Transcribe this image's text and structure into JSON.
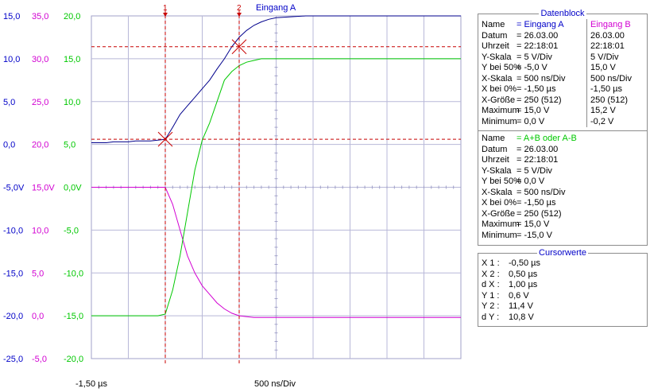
{
  "chart_data": {
    "type": "line",
    "x_start_label": "-1,50 µs",
    "x_div_label": "500 ns/Div",
    "cursor_labels": [
      "1",
      "2"
    ],
    "trace_title": "Eingang A",
    "axes_left": {
      "blue": [
        "15,0",
        "10,0",
        "5,0",
        "0,0",
        "-5,0V",
        "-10,0",
        "-15,0",
        "-20,0",
        "-25,0"
      ],
      "magenta": [
        "35,0",
        "30,0",
        "25,0",
        "20,0",
        "15,0V",
        "10,0",
        "5,0",
        "0,0",
        "-5,0"
      ],
      "green": [
        "20,0",
        "15,0",
        "10,0",
        "5,0",
        "0,0V",
        "-5,0",
        "-10,0",
        "-15,0",
        "-20,0"
      ]
    },
    "x": [
      -1.5,
      -1.4,
      -1.3,
      -1.2,
      -1.1,
      -1.0,
      -0.9,
      -0.8,
      -0.7,
      -0.6,
      -0.5,
      -0.4,
      -0.3,
      -0.2,
      -0.1,
      0.0,
      0.1,
      0.2,
      0.3,
      0.4,
      0.5,
      0.6,
      0.7,
      0.8,
      0.9,
      1.0,
      1.2,
      1.4,
      1.6,
      1.8,
      2.0,
      2.2,
      2.4,
      2.6,
      2.8,
      3.0,
      3.2,
      3.4,
      3.5
    ],
    "series": [
      {
        "name": "Eingang A",
        "color": "#00008c",
        "ylim": [
          -25,
          15
        ],
        "values": [
          0.2,
          0.2,
          0.2,
          0.3,
          0.3,
          0.3,
          0.4,
          0.4,
          0.4,
          0.5,
          0.6,
          2.0,
          3.5,
          4.5,
          5.5,
          6.5,
          7.5,
          8.8,
          10.0,
          11.4,
          12.5,
          13.3,
          13.9,
          14.3,
          14.6,
          14.8,
          14.9,
          15.0,
          15.0,
          15.0,
          15.0,
          15.0,
          15.0,
          15.0,
          15.0,
          15.0,
          15.0,
          15.0,
          15.0
        ]
      },
      {
        "name": "Eingang B",
        "color": "#d200d2",
        "ylim": [
          -5,
          35
        ],
        "values": [
          15.0,
          15.0,
          15.0,
          15.0,
          15.0,
          15.0,
          15.0,
          15.0,
          15.0,
          15.0,
          15.0,
          13.0,
          10.0,
          7.0,
          5.0,
          3.5,
          2.5,
          1.5,
          0.8,
          0.3,
          0.0,
          -0.1,
          -0.2,
          -0.2,
          -0.2,
          -0.2,
          -0.2,
          -0.2,
          -0.2,
          -0.2,
          -0.2,
          -0.2,
          -0.2,
          -0.2,
          -0.2,
          -0.2,
          -0.2,
          -0.2,
          -0.2
        ]
      },
      {
        "name": "A+B oder A-B",
        "color": "#00c800",
        "ylim": [
          -20,
          20
        ],
        "values": [
          -15.0,
          -15.0,
          -15.0,
          -15.0,
          -15.0,
          -15.0,
          -15.0,
          -15.0,
          -15.0,
          -15.0,
          -14.8,
          -12.0,
          -8.0,
          -3.0,
          2.0,
          5.5,
          7.5,
          10.0,
          12.5,
          13.5,
          14.2,
          14.6,
          14.8,
          15.0,
          15.0,
          15.0,
          15.0,
          15.0,
          15.0,
          15.0,
          15.0,
          15.0,
          15.0,
          15.0,
          15.0,
          15.0,
          15.0,
          15.0,
          15.0
        ]
      }
    ],
    "cursors": {
      "x1": -0.5,
      "x2": 0.5,
      "y1": 0.6,
      "y2": 11.4
    },
    "xlim": [
      -1.5,
      3.5
    ],
    "grid": true
  },
  "datenblock": {
    "title": "Datenblock",
    "rows": [
      {
        "label": "Name",
        "a": "= Eingang A",
        "b": "Eingang B"
      },
      {
        "label": "Datum",
        "a": "= 26.03.00",
        "b": "26.03.00"
      },
      {
        "label": "Uhrzeit",
        "a": "= 22:18:01",
        "b": "22:18:01"
      },
      {
        "label": "Y-Skala",
        "a": "=     5    V/Div",
        "b": "  5    V/Div"
      },
      {
        "label": "Y bei 50%",
        "a": "=   -5,0   V",
        "b": "15,0   V"
      },
      {
        "label": "X-Skala",
        "a": "= 500     ns/Div",
        "b": "500    ns/Div"
      },
      {
        "label": "X bei 0%",
        "a": "=   -1,50 µs",
        "b": "  -1,50 µs"
      },
      {
        "label": "X-Größe",
        "a": "= 250 (512)",
        "b": "250 (512)"
      },
      {
        "label": "Maximum",
        "a": "=   15,0   V",
        "b": "  15,2   V"
      },
      {
        "label": "Minimum",
        "a": "=     0,0   V",
        "b": "  -0,2   V"
      }
    ],
    "rows2": [
      {
        "label": "Name",
        "a": "= A+B oder A-B"
      },
      {
        "label": "Datum",
        "a": "= 26.03.00"
      },
      {
        "label": "Uhrzeit",
        "a": "= 22:18:01"
      },
      {
        "label": "Y-Skala",
        "a": "=     5    V/Div"
      },
      {
        "label": "Y bei 50%",
        "a": "=     0,0   V"
      },
      {
        "label": "X-Skala",
        "a": "= 500     ns/Div"
      },
      {
        "label": "X bei 0%",
        "a": "=   -1,50 µs"
      },
      {
        "label": "X-Größe",
        "a": "= 250 (512)"
      },
      {
        "label": "Maximum",
        "a": "=   15,0   V"
      },
      {
        "label": "Minimum",
        "a": "= -15,0   V"
      }
    ]
  },
  "cursorwerte": {
    "title": "Cursorwerte",
    "rows": [
      {
        "label": "X 1 :",
        "value": "-0,50 µs"
      },
      {
        "label": "X 2 :",
        "value": "  0,50 µs"
      },
      {
        "label": "d X :",
        "value": "  1,00 µs"
      },
      {
        "label": "Y 1 :",
        "value": "     0,6   V"
      },
      {
        "label": "Y 2 :",
        "value": "   11,4   V"
      },
      {
        "label": "d Y :",
        "value": "   10,8   V"
      }
    ]
  }
}
